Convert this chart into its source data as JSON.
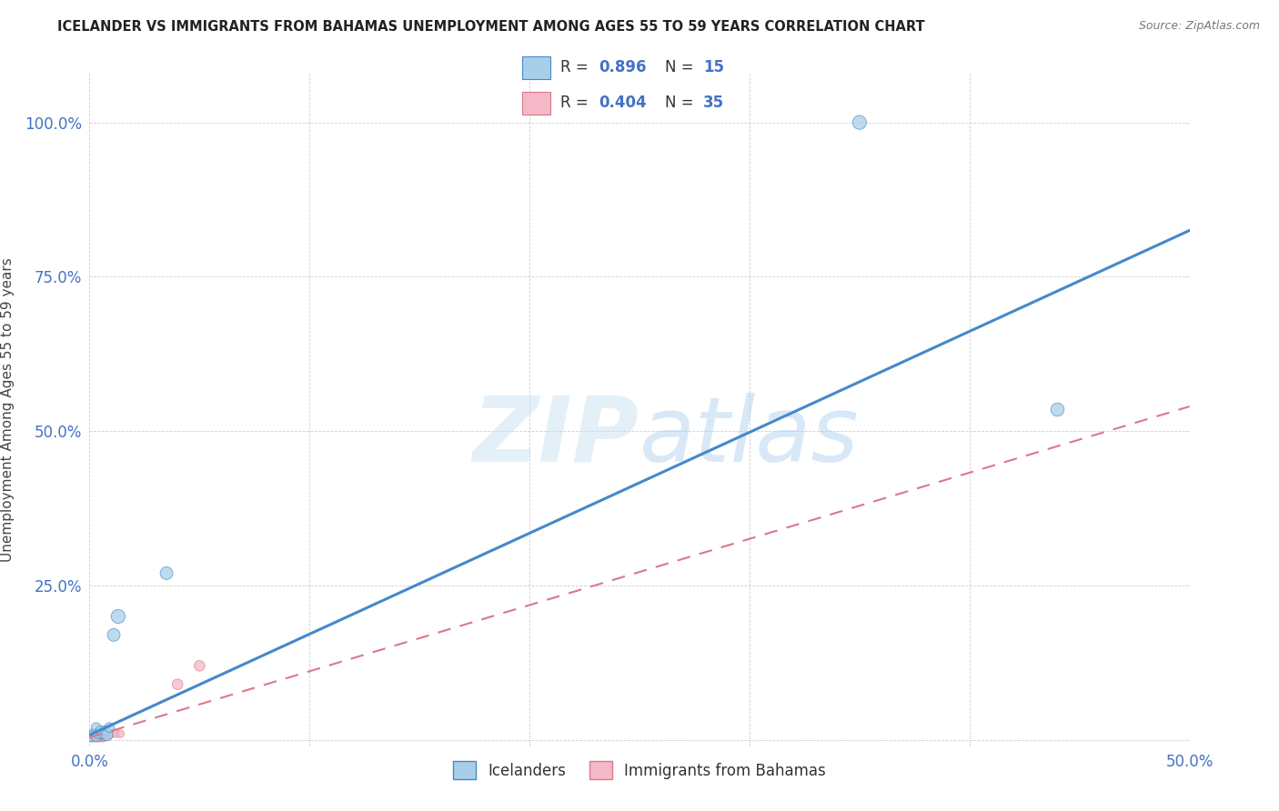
{
  "title": "ICELANDER VS IMMIGRANTS FROM BAHAMAS UNEMPLOYMENT AMONG AGES 55 TO 59 YEARS CORRELATION CHART",
  "source": "Source: ZipAtlas.com",
  "ylabel": "Unemployment Among Ages 55 to 59 years",
  "xlim": [
    0,
    0.5
  ],
  "ylim": [
    -0.01,
    1.08
  ],
  "xticks": [
    0.0,
    0.1,
    0.2,
    0.3,
    0.4,
    0.5
  ],
  "yticks": [
    0.0,
    0.25,
    0.5,
    0.75,
    1.0
  ],
  "xtick_labels": [
    "0.0%",
    "",
    "",
    "",
    "",
    "50.0%"
  ],
  "ytick_labels": [
    "",
    "25.0%",
    "50.0%",
    "75.0%",
    "100.0%"
  ],
  "color_blue": "#a8cfe8",
  "color_pink": "#f5b8c8",
  "color_blue_line": "#4488cc",
  "color_pink_line": "#dd7788",
  "background_color": "#ffffff",
  "icelander_x": [
    0.001,
    0.002,
    0.003,
    0.003,
    0.004,
    0.005,
    0.006,
    0.007,
    0.008,
    0.009,
    0.011,
    0.013,
    0.035,
    0.35,
    0.44
  ],
  "icelander_y": [
    0.005,
    0.01,
    0.005,
    0.02,
    0.01,
    0.015,
    0.01,
    0.015,
    0.008,
    0.02,
    0.17,
    0.2,
    0.27,
    1.0,
    0.535
  ],
  "icelander_sizes": [
    60,
    60,
    60,
    60,
    60,
    60,
    60,
    60,
    80,
    60,
    100,
    120,
    100,
    120,
    110
  ],
  "bahamas_x": [
    0.001,
    0.001,
    0.001,
    0.001,
    0.002,
    0.002,
    0.002,
    0.002,
    0.003,
    0.003,
    0.003,
    0.003,
    0.004,
    0.004,
    0.004,
    0.004,
    0.005,
    0.005,
    0.005,
    0.005,
    0.006,
    0.006,
    0.006,
    0.006,
    0.007,
    0.007,
    0.007,
    0.008,
    0.008,
    0.009,
    0.01,
    0.012,
    0.014,
    0.04,
    0.05
  ],
  "bahamas_y": [
    0.003,
    0.005,
    0.007,
    0.01,
    0.003,
    0.005,
    0.008,
    0.012,
    0.003,
    0.006,
    0.009,
    0.012,
    0.003,
    0.005,
    0.008,
    0.012,
    0.003,
    0.005,
    0.008,
    0.012,
    0.003,
    0.005,
    0.008,
    0.012,
    0.004,
    0.006,
    0.009,
    0.005,
    0.01,
    0.008,
    0.01,
    0.01,
    0.01,
    0.09,
    0.12
  ],
  "bahamas_sizes": [
    35,
    35,
    35,
    35,
    35,
    35,
    35,
    35,
    35,
    35,
    35,
    35,
    35,
    35,
    35,
    35,
    35,
    35,
    35,
    35,
    35,
    35,
    35,
    35,
    35,
    35,
    35,
    35,
    35,
    35,
    35,
    35,
    35,
    70,
    70
  ],
  "blue_line_x0": 0.0,
  "blue_line_y0": 0.008,
  "blue_line_x1": 0.5,
  "blue_line_y1": 0.825,
  "pink_line_x0": 0.0,
  "pink_line_y0": 0.004,
  "pink_line_x1": 0.5,
  "pink_line_y1": 0.54
}
